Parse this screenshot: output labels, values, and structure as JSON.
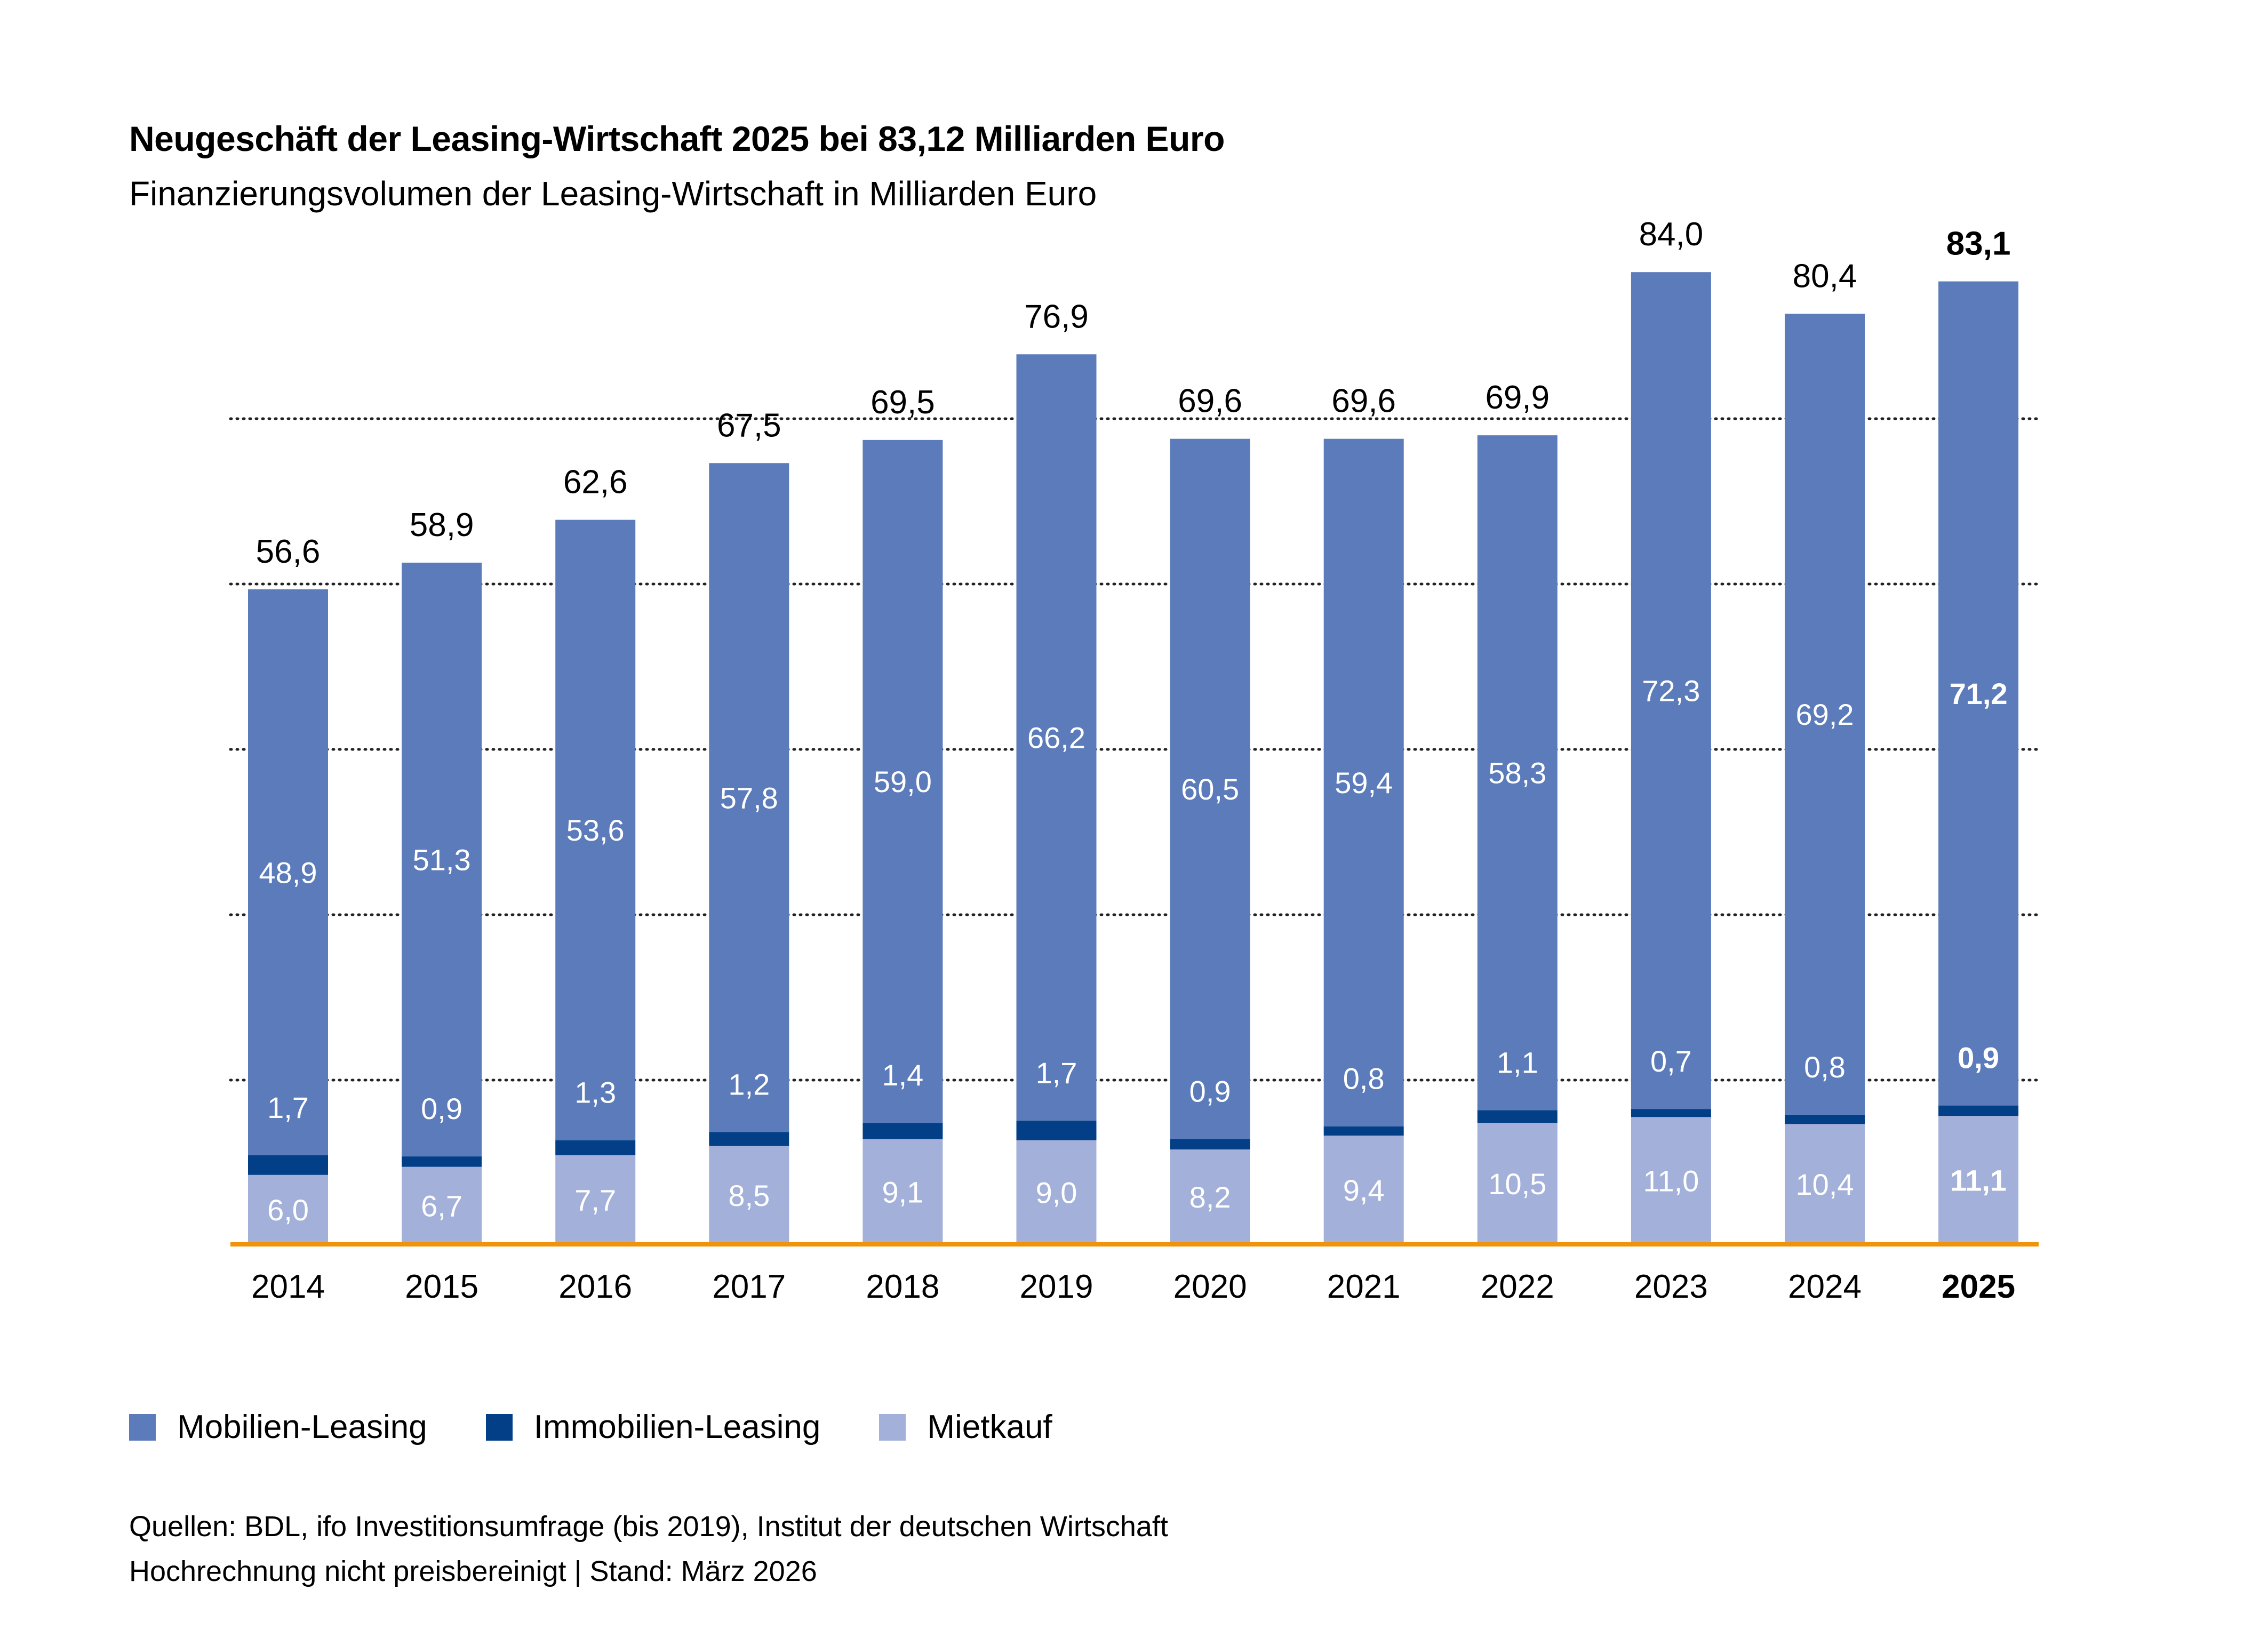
{
  "title": "Neugeschäft der Leasing-Wirtschaft 2025 bei 83,12 Milliarden Euro",
  "subtitle": "Finanzierungsvolumen der Leasing-Wirtschaft in Milliarden Euro",
  "colors": {
    "mobilien": "#5b7bba",
    "immobilien": "#023f87",
    "mietkauf": "#a3b0d9",
    "baseline": "#f0930a",
    "grid": "#222222"
  },
  "legend": [
    {
      "label": "Mobilien-Leasing",
      "color": "#5b7bba"
    },
    {
      "label": "Immobilien-Leasing",
      "color": "#023f87"
    },
    {
      "label": "Mietkauf",
      "color": "#a3b0d9"
    }
  ],
  "footer": {
    "line1": "Quellen: BDL, ifo Investitionsumfrage (bis 2019), Institut der deutschen Wirtschaft",
    "line2": "Hochrechnung nicht preisbereinigt | Stand: März 2026"
  },
  "chart_data": {
    "type": "bar",
    "stacked": true,
    "title": "Neugeschäft der Leasing-Wirtschaft 2025 bei 83,12 Milliarden Euro",
    "subtitle": "Finanzierungsvolumen der Leasing-Wirtschaft in Milliarden Euro",
    "xlabel": "",
    "ylabel": "Milliarden Euro",
    "ylim": [
      0,
      90
    ],
    "grid": true,
    "legend_position": "bottom-left",
    "highlight_category": "2025",
    "categories": [
      "2014",
      "2015",
      "2016",
      "2017",
      "2018",
      "2019",
      "2020",
      "2021",
      "2022",
      "2023",
      "2024",
      "2025"
    ],
    "series": [
      {
        "name": "Mietkauf",
        "values": [
          6.0,
          6.7,
          7.7,
          8.5,
          9.1,
          9.0,
          8.2,
          9.4,
          10.5,
          11.0,
          10.4,
          11.1
        ],
        "labels": [
          "6,0",
          "6,7",
          "7,7",
          "8,5",
          "9,1",
          "9,0",
          "8,2",
          "9,4",
          "10,5",
          "11,0",
          "10,4",
          "11,1"
        ]
      },
      {
        "name": "Immobilien-Leasing",
        "values": [
          1.7,
          0.9,
          1.3,
          1.2,
          1.4,
          1.7,
          0.9,
          0.8,
          1.1,
          0.7,
          0.8,
          0.9
        ],
        "labels": [
          "1,7",
          "0,9",
          "1,3",
          "1,2",
          "1,4",
          "1,7",
          "0,9",
          "0,8",
          "1,1",
          "0,7",
          "0,8",
          "0,9"
        ]
      },
      {
        "name": "Mobilien-Leasing",
        "values": [
          48.9,
          51.3,
          53.6,
          57.8,
          59.0,
          66.2,
          60.5,
          59.4,
          58.3,
          72.3,
          69.2,
          71.2
        ],
        "labels": [
          "48,9",
          "51,3",
          "53,6",
          "57,8",
          "59,0",
          "66,2",
          "60,5",
          "59,4",
          "58,3",
          "72,3",
          "69,2",
          "71,2"
        ]
      }
    ],
    "totals": [
      56.6,
      58.9,
      62.6,
      67.5,
      69.5,
      76.9,
      69.6,
      69.6,
      69.9,
      84.0,
      80.4,
      83.1
    ],
    "total_labels": [
      "56,6",
      "58,9",
      "62,6",
      "67,5",
      "69,5",
      "76,9",
      "69,6",
      "69,6",
      "69,9",
      "84,0",
      "80,4",
      "83,1"
    ]
  }
}
